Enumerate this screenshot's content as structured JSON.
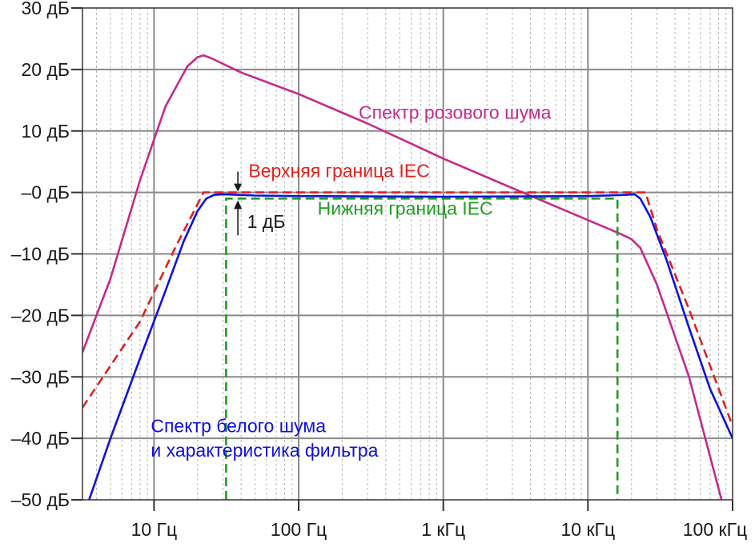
{
  "chart_data": {
    "type": "line",
    "title": "",
    "xlabel": "",
    "ylabel": "",
    "x_scale": "log",
    "xlim": [
      3.2,
      100000
    ],
    "ylim": [
      -50,
      30
    ],
    "grid": true,
    "x_tick_values": [
      10,
      100,
      1000,
      10000,
      100000
    ],
    "x_tick_labels": [
      "10 Гц",
      "100 Гц",
      "1 кГц",
      "10 кГц",
      "100 кГц"
    ],
    "y_tick_values": [
      30,
      20,
      10,
      0,
      -10,
      -20,
      -30,
      -40,
      -50
    ],
    "y_tick_labels": [
      "30 дБ",
      "20 дБ",
      "10 дБ",
      "–0 дБ",
      "–10 дБ",
      "–20 дБ",
      "–30 дБ",
      "–40 дБ",
      "–50 дБ"
    ],
    "series": [
      {
        "key": "pink",
        "color": "#c42a8c",
        "style": "solid",
        "points": [
          [
            3.2,
            -26
          ],
          [
            5,
            -14
          ],
          [
            8,
            2
          ],
          [
            12,
            14
          ],
          [
            17,
            20.5
          ],
          [
            20,
            22
          ],
          [
            22,
            22.3
          ],
          [
            25,
            21.8
          ],
          [
            40,
            19.5
          ],
          [
            100,
            16
          ],
          [
            300,
            11.2
          ],
          [
            1000,
            5.5
          ],
          [
            3000,
            0.7
          ],
          [
            10000,
            -4.5
          ],
          [
            17000,
            -6.8
          ],
          [
            20000,
            -7.6
          ],
          [
            23000,
            -9
          ],
          [
            30000,
            -15
          ],
          [
            50000,
            -30
          ],
          [
            85000,
            -50.5
          ]
        ]
      },
      {
        "key": "white_filter",
        "color": "#1010e0",
        "style": "solid",
        "points": [
          [
            3.5,
            -50.5
          ],
          [
            5,
            -40
          ],
          [
            8,
            -27
          ],
          [
            12,
            -16
          ],
          [
            16,
            -8
          ],
          [
            20,
            -3
          ],
          [
            23,
            -1
          ],
          [
            26,
            -0.4
          ],
          [
            30,
            -0.3
          ],
          [
            50,
            -0.5
          ],
          [
            100,
            -0.6
          ],
          [
            1000,
            -0.7
          ],
          [
            10000,
            -0.6
          ],
          [
            18000,
            -0.4
          ],
          [
            21000,
            -0.3
          ],
          [
            23000,
            -1
          ],
          [
            27000,
            -4
          ],
          [
            35000,
            -11
          ],
          [
            50000,
            -22
          ],
          [
            70000,
            -32
          ],
          [
            100000,
            -40
          ]
        ]
      },
      {
        "key": "iec_upper",
        "color": "#e02020",
        "style": "dashed",
        "points": [
          [
            3.2,
            -35
          ],
          [
            8,
            -21
          ],
          [
            14,
            -9
          ],
          [
            22,
            0
          ],
          [
            25000,
            0
          ],
          [
            30000,
            -6
          ],
          [
            50000,
            -19
          ],
          [
            100000,
            -38
          ]
        ]
      },
      {
        "key": "iec_lower",
        "color": "#1f9e1f",
        "style": "dashed",
        "points": [
          [
            31.5,
            -50
          ],
          [
            31.5,
            -1
          ],
          [
            16000,
            -1
          ],
          [
            16000,
            -50
          ]
        ]
      }
    ],
    "annotations": [
      {
        "key": "pink_label",
        "text": "Спектр розового шума",
        "color": "#c42a8c",
        "at": [
          260,
          12
        ]
      },
      {
        "key": "upper_label",
        "text": "Верхняя граница IEC",
        "color": "#e02020",
        "at": [
          45,
          2.5
        ]
      },
      {
        "key": "lower_label",
        "text": "Нижняя граница IEC",
        "color": "#1f9e1f",
        "at": [
          135,
          -3.6
        ]
      },
      {
        "key": "db_marker",
        "text": "1 дБ",
        "color": "#1a1a1a",
        "at": [
          44,
          -5.8
        ]
      },
      {
        "key": "white_label_1",
        "text": "Спектр белого шума",
        "color": "#1010e0",
        "at": [
          9.5,
          -39
        ]
      },
      {
        "key": "white_label_2",
        "text": "и характеристика фильтра",
        "color": "#1010e0",
        "at": [
          9.5,
          -43
        ]
      }
    ]
  }
}
